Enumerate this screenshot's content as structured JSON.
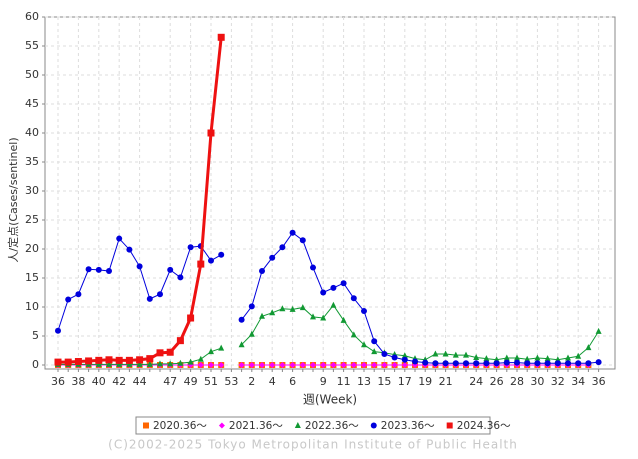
{
  "chart_data": {
    "type": "line",
    "y_label": "人/定点(Cases/sentinel)",
    "x_label": "週(Week)",
    "footer": "(C)2002-2025 Tokyo Metropolitan Institute of Public Health",
    "categories": [
      "36",
      null,
      "38",
      null,
      "40",
      null,
      "42",
      null,
      "44",
      null,
      null,
      "47",
      null,
      "49",
      null,
      "51",
      null,
      "53",
      null,
      "2",
      null,
      "4",
      null,
      "6",
      null,
      null,
      "9",
      null,
      "11",
      null,
      "13",
      null,
      "15",
      null,
      "17",
      null,
      "19",
      null,
      "21",
      null,
      null,
      "24",
      null,
      "26",
      null,
      "28",
      null,
      "30",
      null,
      "32",
      null,
      "34",
      null,
      "36"
    ],
    "ylim": [
      0,
      60
    ],
    "yticks": [
      0,
      5,
      10,
      15,
      20,
      25,
      30,
      35,
      40,
      45,
      50,
      55,
      60
    ],
    "grid": true,
    "series": [
      {
        "name": "2020.36～",
        "color": "#ff6600",
        "marker": "square",
        "width": 1,
        "values": [
          0,
          0,
          0,
          0,
          0,
          0,
          0,
          0,
          0,
          0,
          0,
          0,
          0,
          0,
          0,
          0,
          0,
          null,
          0,
          0,
          0,
          0,
          0,
          0,
          0,
          0,
          0,
          0,
          0,
          0,
          0,
          0,
          0,
          0,
          0,
          0,
          0,
          0,
          0,
          0,
          0,
          0,
          0,
          0,
          0,
          0,
          0,
          0,
          0,
          0,
          0,
          0,
          0,
          null
        ]
      },
      {
        "name": "2021.36～",
        "color": "#ff00ff",
        "marker": "diamond",
        "width": 1,
        "values": [
          0,
          0,
          0,
          0,
          0,
          0,
          0,
          0,
          0,
          0,
          0,
          0,
          0,
          0,
          0,
          0,
          0,
          null,
          0,
          0,
          0,
          0,
          0,
          0,
          0,
          0,
          0,
          0,
          0,
          0,
          0,
          0,
          0,
          0,
          0,
          0,
          0,
          0,
          0,
          0,
          0,
          0,
          0,
          0,
          0,
          0,
          0,
          0,
          0,
          0,
          0,
          0,
          0,
          null
        ]
      },
      {
        "name": "2022.36～",
        "color": "#119933",
        "marker": "triangle",
        "width": 1,
        "values": [
          0.1,
          0.1,
          0.1,
          0.1,
          0.1,
          0.1,
          0.1,
          0.1,
          0.1,
          0.1,
          0.2,
          0.2,
          0.3,
          0.5,
          1.0,
          2.3,
          2.9,
          null,
          3.5,
          5.3,
          8.4,
          9.0,
          9.7,
          9.6,
          9.9,
          8.3,
          8.1,
          10.3,
          7.7,
          5.2,
          3.5,
          2.3,
          2.1,
          1.8,
          1.6,
          1.1,
          0.9,
          1.9,
          1.9,
          1.7,
          1.7,
          1.3,
          1.1,
          0.9,
          1.2,
          1.2,
          1.0,
          1.2,
          1.1,
          0.9,
          1.2,
          1.5,
          3.0,
          5.8
        ]
      },
      {
        "name": "2023.36～",
        "color": "#0000dd",
        "marker": "circle",
        "width": 1,
        "values": [
          5.9,
          11.3,
          12.2,
          16.5,
          16.4,
          16.2,
          21.8,
          19.9,
          17.0,
          11.4,
          12.2,
          16.4,
          15.1,
          20.3,
          20.5,
          18.0,
          19.0,
          null,
          7.8,
          10.1,
          16.2,
          18.5,
          20.3,
          22.8,
          21.5,
          16.8,
          12.5,
          13.3,
          14.1,
          11.5,
          9.3,
          4.1,
          1.9,
          1.3,
          0.9,
          0.6,
          0.4,
          0.3,
          0.3,
          0.3,
          0.3,
          0.3,
          0.3,
          0.3,
          0.4,
          0.4,
          0.3,
          0.3,
          0.3,
          0.3,
          0.3,
          0.3,
          0.3,
          0.5
        ]
      },
      {
        "name": "2024.36～",
        "color": "#ee1111",
        "marker": "square",
        "width": 3,
        "values": [
          0.5,
          0.5,
          0.6,
          0.7,
          0.8,
          0.9,
          0.8,
          0.8,
          0.9,
          1.1,
          2.1,
          2.2,
          4.2,
          8.1,
          17.4,
          40.0,
          56.5,
          null,
          null,
          null,
          null,
          null,
          null,
          null,
          null,
          null,
          null,
          null,
          null,
          null,
          null,
          null,
          null,
          null,
          null,
          null,
          null,
          null,
          null,
          null,
          null,
          null,
          null,
          null,
          null,
          null,
          null,
          null,
          null,
          null,
          null,
          null,
          null,
          null
        ]
      }
    ]
  }
}
